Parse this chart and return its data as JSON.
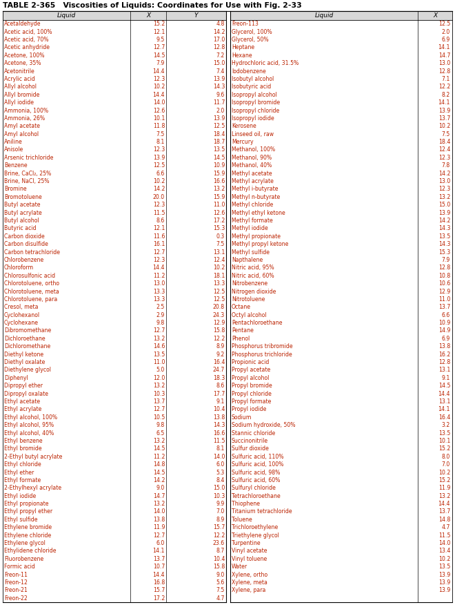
{
  "title": "TABLE 2-365   Viscosities of Liquids: Coordinates for Use with Fig. 2-33",
  "left_data": [
    [
      "Acetaldehyde",
      "15.2",
      "4.8"
    ],
    [
      "Acetic acid, 100%",
      "12.1",
      "14.2"
    ],
    [
      "Acetic acid, 70%",
      "9.5",
      "17.0"
    ],
    [
      "Acetic anhydride",
      "12.7",
      "12.8"
    ],
    [
      "Acetone, 100%",
      "14.5",
      "7.2"
    ],
    [
      "Acetone, 35%",
      "7.9",
      "15.0"
    ],
    [
      "Acetonitrile",
      "14.4",
      "7.4"
    ],
    [
      "Acrylic acid",
      "12.3",
      "13.9"
    ],
    [
      "Allyl alcohol",
      "10.2",
      "14.3"
    ],
    [
      "Allyl bromide",
      "14.4",
      "9.6"
    ],
    [
      "Allyl iodide",
      "14.0",
      "11.7"
    ],
    [
      "Ammonia, 100%",
      "12.6",
      "2.0"
    ],
    [
      "Ammonia, 26%",
      "10.1",
      "13.9"
    ],
    [
      "Amyl acetate",
      "11.8",
      "12.5"
    ],
    [
      "Amyl alcohol",
      "7.5",
      "18.4"
    ],
    [
      "Aniline",
      "8.1",
      "18.7"
    ],
    [
      "Anisole",
      "12.3",
      "13.5"
    ],
    [
      "Arsenic trichloride",
      "13.9",
      "14.5"
    ],
    [
      "Benzene",
      "12.5",
      "10.9"
    ],
    [
      "Brine, CaCl₂, 25%",
      "6.6",
      "15.9"
    ],
    [
      "Brine, NaCl, 25%",
      "10.2",
      "16.6"
    ],
    [
      "Bromine",
      "14.2",
      "13.2"
    ],
    [
      "Bromotoluene",
      "20.0",
      "15.9"
    ],
    [
      "Butyl acetate",
      "12.3",
      "11.0"
    ],
    [
      "Butyl acrylate",
      "11.5",
      "12.6"
    ],
    [
      "Butyl alcohol",
      "8.6",
      "17.2"
    ],
    [
      "Butyric acid",
      "12.1",
      "15.3"
    ],
    [
      "Carbon dioxide",
      "11.6",
      "0.3"
    ],
    [
      "Carbon disulfide",
      "16.1",
      "7.5"
    ],
    [
      "Carbon tetrachloride",
      "12.7",
      "13.1"
    ],
    [
      "Chlorobenzene",
      "12.3",
      "12.4"
    ],
    [
      "Chloroform",
      "14.4",
      "10.2"
    ],
    [
      "Chlorosulfonic acid",
      "11.2",
      "18.1"
    ],
    [
      "Chlorotoluene, ortho",
      "13.0",
      "13.3"
    ],
    [
      "Chlorotoluene, meta",
      "13.3",
      "12.5"
    ],
    [
      "Chlorotoluene, para",
      "13.3",
      "12.5"
    ],
    [
      "Cresol, meta",
      "2.5",
      "20.8"
    ],
    [
      "Cyclohexanol",
      "2.9",
      "24.3"
    ],
    [
      "Cyclohexane",
      "9.8",
      "12.9"
    ],
    [
      "Dibromomethane",
      "12.7",
      "15.8"
    ],
    [
      "Dichloroethane",
      "13.2",
      "12.2"
    ],
    [
      "Dichloromethane",
      "14.6",
      "8.9"
    ],
    [
      "Diethyl ketone",
      "13.5",
      "9.2"
    ],
    [
      "Diethyl oxalate",
      "11.0",
      "16.4"
    ],
    [
      "Diethylene glycol",
      "5.0",
      "24.7"
    ],
    [
      "Diphenyl",
      "12.0",
      "18.3"
    ],
    [
      "Dipropyl ether",
      "13.2",
      "8.6"
    ],
    [
      "Dipropyl oxalate",
      "10.3",
      "17.7"
    ],
    [
      "Ethyl acetate",
      "13.7",
      "9.1"
    ],
    [
      "Ethyl acrylate",
      "12.7",
      "10.4"
    ],
    [
      "Ethyl alcohol, 100%",
      "10.5",
      "13.8"
    ],
    [
      "Ethyl alcohol, 95%",
      "9.8",
      "14.3"
    ],
    [
      "Ethyl alcohol, 40%",
      "6.5",
      "16.6"
    ],
    [
      "Ethyl benzene",
      "13.2",
      "11.5"
    ],
    [
      "Ethyl bromide",
      "14.5",
      "8.1"
    ],
    [
      "2-Ethyl butyl acrylate",
      "11.2",
      "14.0"
    ],
    [
      "Ethyl chloride",
      "14.8",
      "6.0"
    ],
    [
      "Ethyl ether",
      "14.5",
      "5.3"
    ],
    [
      "Ethyl formate",
      "14.2",
      "8.4"
    ],
    [
      "2-Ethylhexyl acrylate",
      "9.0",
      "15.0"
    ],
    [
      "Ethyl iodide",
      "14.7",
      "10.3"
    ],
    [
      "Ethyl propionate",
      "13.2",
      "9.9"
    ],
    [
      "Ethyl propyl ether",
      "14.0",
      "7.0"
    ],
    [
      "Ethyl sulfide",
      "13.8",
      "8.9"
    ],
    [
      "Ethylene bromide",
      "11.9",
      "15.7"
    ],
    [
      "Ethylene chloride",
      "12.7",
      "12.2"
    ],
    [
      "Ethylene glycol",
      "6.0",
      "23.6"
    ],
    [
      "Ethylidene chloride",
      "14.1",
      "8.7"
    ],
    [
      "Fluorobenzene",
      "13.7",
      "10.4"
    ],
    [
      "Formic acid",
      "10.7",
      "15.8"
    ],
    [
      "Freon-11",
      "14.4",
      "9.0"
    ],
    [
      "Freon-12",
      "16.8",
      "5.6"
    ],
    [
      "Freon-21",
      "15.7",
      "7.5"
    ],
    [
      "Freon-22",
      "17.2",
      "4.7"
    ]
  ],
  "right_data": [
    [
      "Freon-113",
      "12.5"
    ],
    [
      "Glycerol, 100%",
      "2.0"
    ],
    [
      "Glycerol, 50%",
      "6.9"
    ],
    [
      "Heptane",
      "14.1"
    ],
    [
      "Hexane",
      "14.7"
    ],
    [
      "Hydrochloric acid, 31.5%",
      "13.0"
    ],
    [
      "Iodobenzene",
      "12.8"
    ],
    [
      "Isobutyl alcohol",
      "7.1"
    ],
    [
      "Isobutyric acid",
      "12.2"
    ],
    [
      "Isopropyl alcohol",
      "8.2"
    ],
    [
      "Isopropyl bromide",
      "14.1"
    ],
    [
      "Isopropyl chloride",
      "13.9"
    ],
    [
      "Isopropyl iodide",
      "13.7"
    ],
    [
      "Kerosene",
      "10.2"
    ],
    [
      "Linseed oil, raw",
      "7.5"
    ],
    [
      "Mercury",
      "18.4"
    ],
    [
      "Methanol, 100%",
      "12.4"
    ],
    [
      "Methanol, 90%",
      "12.3"
    ],
    [
      "Methanol, 40%",
      "7.8"
    ],
    [
      "Methyl acetate",
      "14.2"
    ],
    [
      "Methyl acrylate",
      "13.0"
    ],
    [
      "Methyl i-butyrate",
      "12.3"
    ],
    [
      "Methyl n-butyrate",
      "13.2"
    ],
    [
      "Methyl chloride",
      "15.0"
    ],
    [
      "Methyl ethyl ketone",
      "13.9"
    ],
    [
      "Methyl formate",
      "14.2"
    ],
    [
      "Methyl iodide",
      "14.3"
    ],
    [
      "Methyl propionate",
      "13.5"
    ],
    [
      "Methyl propyl ketone",
      "14.3"
    ],
    [
      "Methyl sulfide",
      "15.3"
    ],
    [
      "Napthalene",
      "7.9"
    ],
    [
      "Nitric acid, 95%",
      "12.8"
    ],
    [
      "Nitric acid, 60%",
      "10.8"
    ],
    [
      "Nitrobenzene",
      "10.6"
    ],
    [
      "Nitrogen dioxide",
      "12.9"
    ],
    [
      "Nitrotoluene",
      "11.0"
    ],
    [
      "Octane",
      "13.7"
    ],
    [
      "Octyl alcohol",
      "6.6"
    ],
    [
      "Pentachloroethane",
      "10.9"
    ],
    [
      "Pentane",
      "14.9"
    ],
    [
      "Phenol",
      "6.9"
    ],
    [
      "Phosphorus tribromide",
      "13.8"
    ],
    [
      "Phosphorus trichloride",
      "16.2"
    ],
    [
      "Propionic acid",
      "12.8"
    ],
    [
      "Propyl acetate",
      "13.1"
    ],
    [
      "Propyl alcohol",
      "9.1"
    ],
    [
      "Propyl bromide",
      "14.5"
    ],
    [
      "Propyl chloride",
      "14.4"
    ],
    [
      "Propyl formate",
      "13.1"
    ],
    [
      "Propyl iodide",
      "14.1"
    ],
    [
      "Sodium",
      "16.4"
    ],
    [
      "Sodium hydroxide, 50%",
      "3.2"
    ],
    [
      "Stannic chloride",
      "13.5"
    ],
    [
      "Succinonitrile",
      "10.1"
    ],
    [
      "Sulfur dioxide",
      "15.2"
    ],
    [
      "Sulfuric acid, 110%",
      "8.0"
    ],
    [
      "Sulfuric acid, 100%",
      "7.0"
    ],
    [
      "Sulfuric acid, 98%",
      "10.2"
    ],
    [
      "Sulfuric acid, 60%",
      "15.2"
    ],
    [
      "Sulfuryl chloride",
      "11.9"
    ],
    [
      "Tetrachloroethane",
      "13.2"
    ],
    [
      "Thiophene",
      "14.4"
    ],
    [
      "Titanium tetrachloride",
      "13.7"
    ],
    [
      "Toluene",
      "14.8"
    ],
    [
      "Trichloroethylene",
      "4.7"
    ],
    [
      "Triethylene glycol",
      "11.5"
    ],
    [
      "Turpentine",
      "14.0"
    ],
    [
      "Vinyl acetate",
      "13.4"
    ],
    [
      "Vinyl toluene",
      "10.2"
    ],
    [
      "Water",
      "13.5"
    ],
    [
      "Xylene, ortho",
      "13.9"
    ],
    [
      "Xylene, meta",
      "13.9"
    ],
    [
      "Xylene, para",
      "13.9"
    ]
  ],
  "col_headers_left": [
    "Liquid",
    "X",
    "Y"
  ],
  "col_headers_right": [
    "Liquid",
    "X"
  ],
  "title_color": "#000000",
  "text_color": "#bb2200",
  "header_text_color": "#000000",
  "bg_color": "#ffffff",
  "line_color": "#000000",
  "title_fontsize": 7.8,
  "header_fontsize": 6.5,
  "data_fontsize": 5.6
}
